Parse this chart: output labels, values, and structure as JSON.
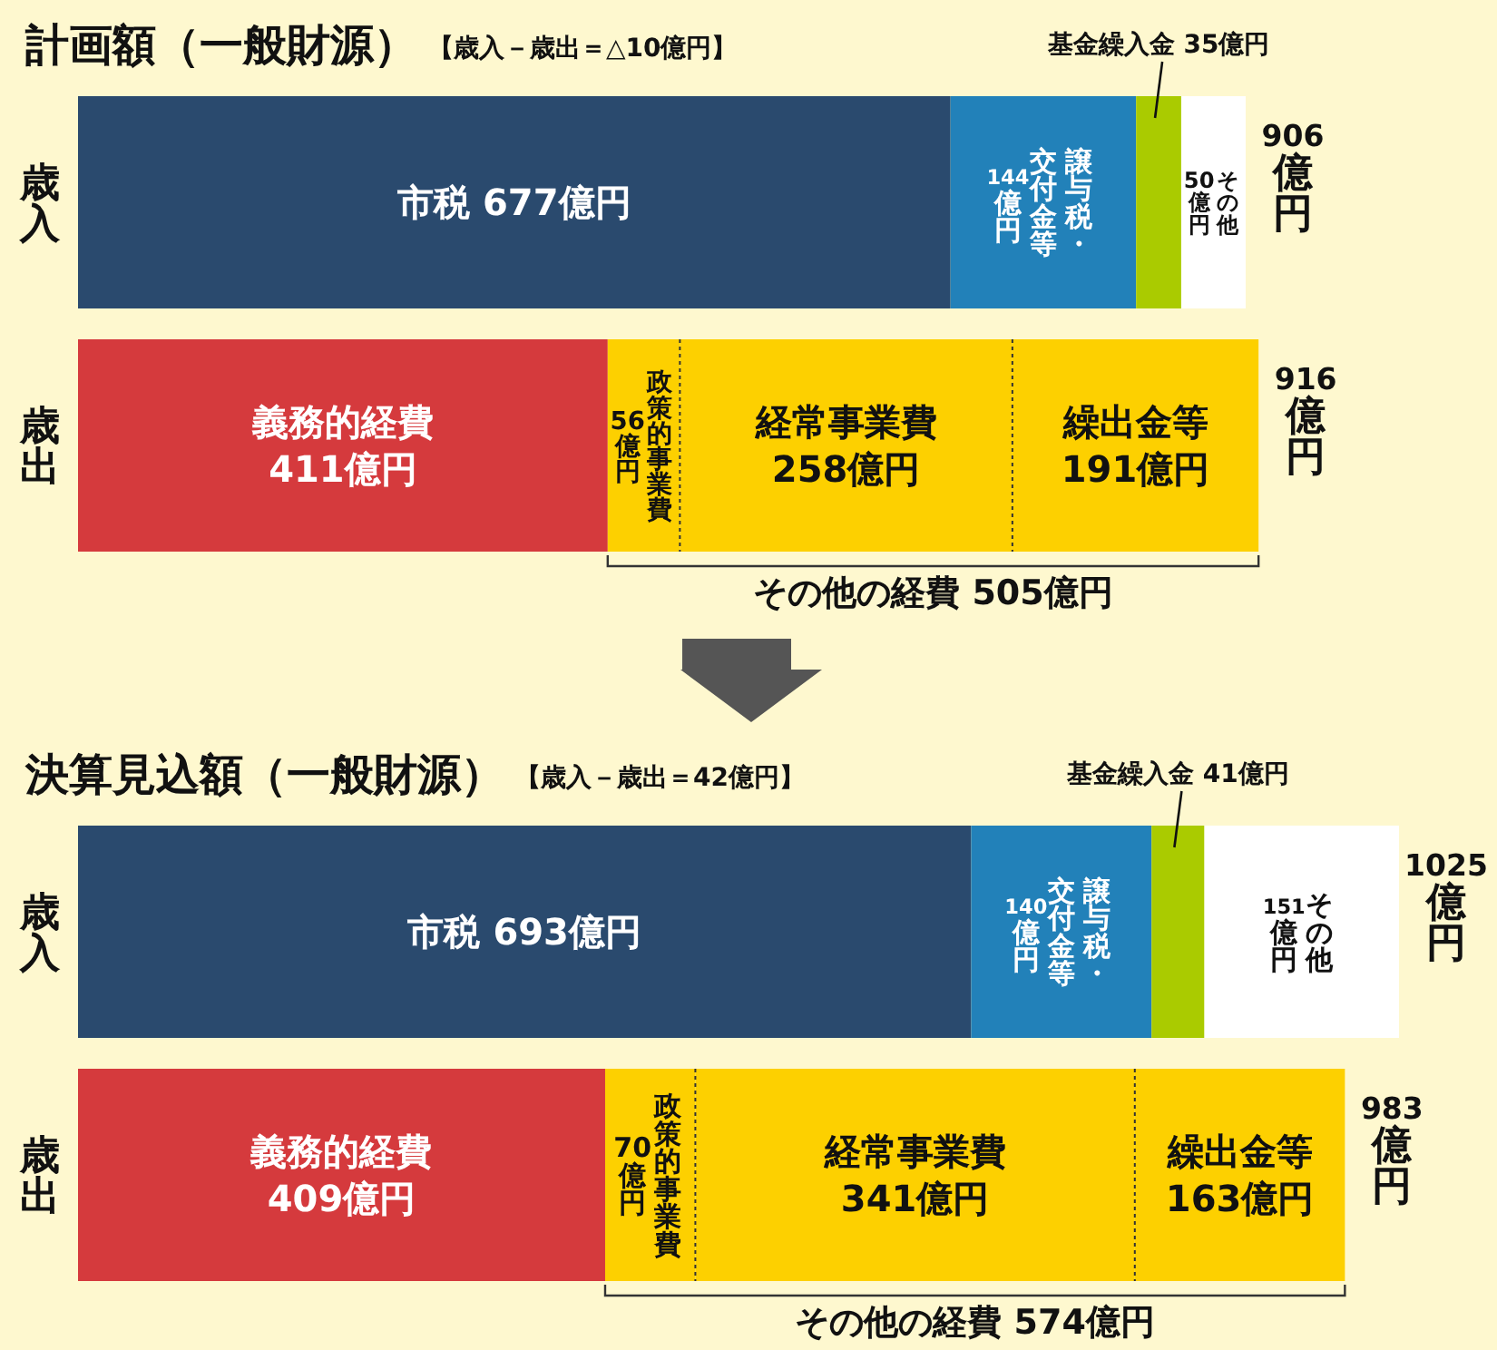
{
  "chart_data": [
    {
      "type": "bar",
      "orientation": "horizontal",
      "stacked": true,
      "title": "計画額（一般財源）",
      "subtitle": "【歳入－歳出＝△10億円】",
      "categories": [
        "歳入",
        "歳出"
      ],
      "totals": [
        "906億円",
        "916億円"
      ],
      "series": [
        {
          "color": "#2a4a6e",
          "values": [
            677,
            null
          ],
          "value_labels": [
            "市税 677億円",
            null
          ]
        },
        {
          "color": "#2281b9",
          "values": [
            144,
            null
          ],
          "value_labels": [
            "譲与税・交付金等\n144億円",
            null
          ]
        },
        {
          "color": "#aacb00",
          "values": [
            35,
            null
          ],
          "value_labels": [
            "基金繰入金 35億円",
            null
          ]
        },
        {
          "color": "#ffffff",
          "values": [
            50,
            null
          ],
          "value_labels": [
            "その他\n50億円",
            null
          ]
        },
        {
          "color": "#d53a3d",
          "values": [
            null,
            411
          ],
          "value_labels": [
            null,
            "義務的経費\n411億円"
          ]
        },
        {
          "color": "#fdd000",
          "values": [
            null,
            56
          ],
          "value_labels": [
            null,
            "政策的事業費\n56億円"
          ]
        },
        {
          "color": "#fdd000",
          "values": [
            null,
            258
          ],
          "value_labels": [
            null,
            "経常事業費\n258億円"
          ]
        },
        {
          "color": "#fdd000",
          "values": [
            null,
            191
          ],
          "value_labels": [
            null,
            "繰出金等\n191億円"
          ]
        }
      ],
      "annotations": [
        "その他の経費 505億円"
      ]
    },
    {
      "type": "bar",
      "orientation": "horizontal",
      "stacked": true,
      "title": "決算見込額（一般財源）",
      "subtitle": "【歳入－歳出＝42億円】",
      "categories": [
        "歳入",
        "歳出"
      ],
      "totals": [
        "1025億円",
        "983億円"
      ],
      "series": [
        {
          "color": "#2a4a6e",
          "values": [
            693,
            null
          ],
          "value_labels": [
            "市税 693億円",
            null
          ]
        },
        {
          "color": "#2281b9",
          "values": [
            140,
            null
          ],
          "value_labels": [
            "譲与税・交付金等\n140億円",
            null
          ]
        },
        {
          "color": "#aacb00",
          "values": [
            41,
            null
          ],
          "value_labels": [
            "基金繰入金 41億円",
            null
          ]
        },
        {
          "color": "#ffffff",
          "values": [
            151,
            null
          ],
          "value_labels": [
            "その他\n151億円",
            null
          ]
        },
        {
          "color": "#d53a3d",
          "values": [
            null,
            409
          ],
          "value_labels": [
            null,
            "義務的経費\n409億円"
          ]
        },
        {
          "color": "#fdd000",
          "values": [
            null,
            70
          ],
          "value_labels": [
            null,
            "政策的事業費\n70億円"
          ]
        },
        {
          "color": "#fdd000",
          "values": [
            null,
            341
          ],
          "value_labels": [
            null,
            "経常事業費\n341億円"
          ]
        },
        {
          "color": "#fdd000",
          "values": [
            null,
            163
          ],
          "value_labels": [
            null,
            "繰出金等\n163億円"
          ]
        }
      ],
      "annotations": [
        "その他の経費 574億円"
      ]
    }
  ]
}
